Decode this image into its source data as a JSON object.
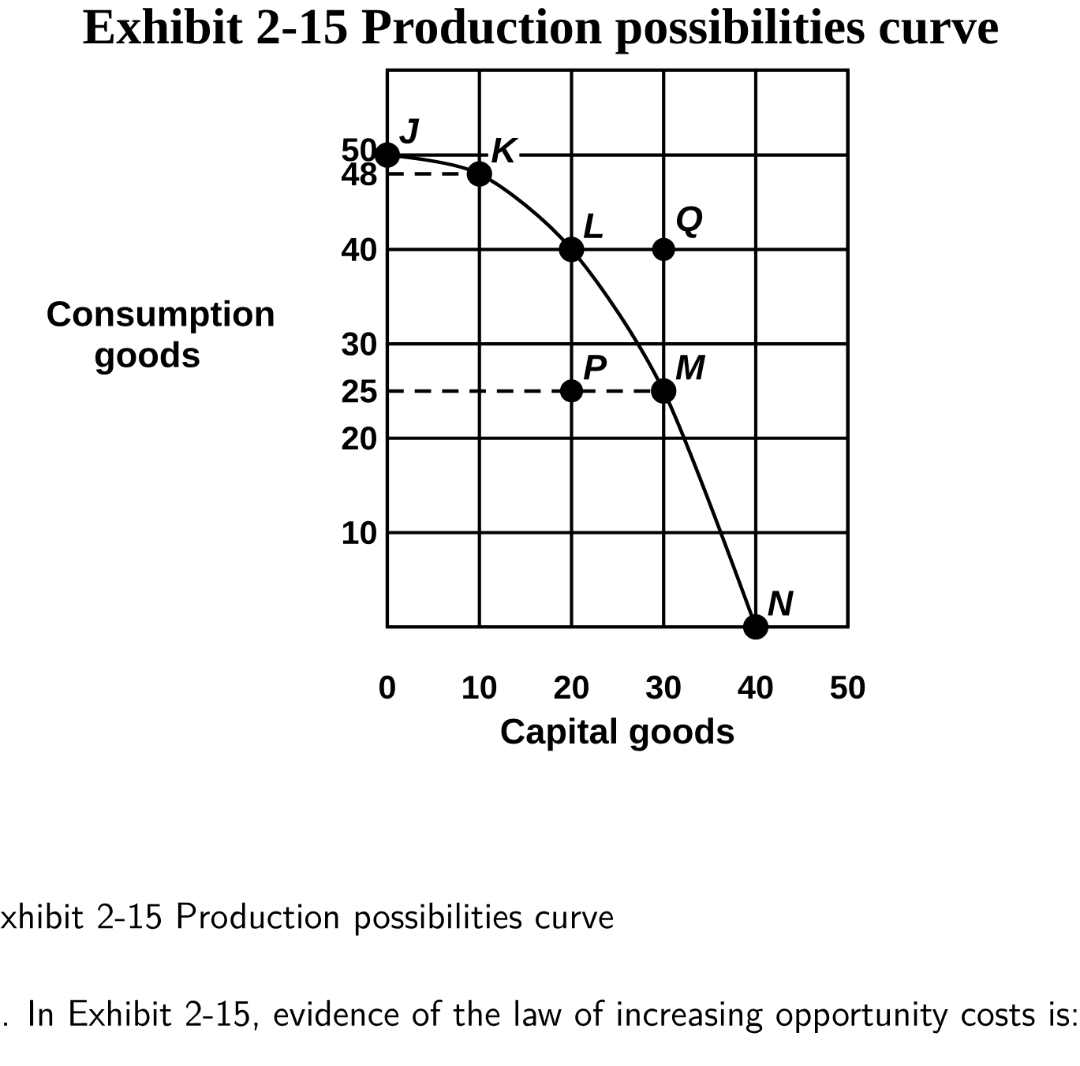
{
  "chart_data": {
    "type": "line",
    "title": "Exhibit 2-15 Production possibilities curve",
    "xlabel": "Capital goods",
    "ylabel": "Consumption goods",
    "xlim": [
      0,
      50
    ],
    "ylim": [
      0,
      59
    ],
    "xticks": [
      0,
      10,
      20,
      30,
      40,
      50
    ],
    "yticks": [
      10,
      20,
      25,
      30,
      40,
      48,
      50
    ],
    "grid": true,
    "series": [
      {
        "color": "#000000",
        "marker": "circle",
        "line_style": "solid",
        "x": [
          0,
          10,
          20,
          30,
          40
        ],
        "values": [
          50,
          48,
          40,
          25,
          0
        ]
      },
      {
        "type": "scatter",
        "color": "#000000",
        "marker": "circle",
        "x": [
          20,
          30
        ],
        "values": [
          25,
          40
        ]
      },
      {
        "color": "#000000",
        "marker": "none",
        "line_style": "dashed",
        "x": [
          0,
          10
        ],
        "values": [
          48,
          48
        ]
      },
      {
        "color": "#000000",
        "marker": "none",
        "line_style": "dashed",
        "x": [
          0,
          30
        ],
        "values": [
          25,
          25
        ]
      }
    ],
    "annotations": [
      {
        "text": "J",
        "x": 0,
        "y": 50
      },
      {
        "text": "K",
        "x": 10,
        "y": 48
      },
      {
        "text": "L",
        "x": 20,
        "y": 40
      },
      {
        "text": "Q",
        "x": 30,
        "y": 40
      },
      {
        "text": "M",
        "x": 30,
        "y": 25
      },
      {
        "text": "P",
        "x": 20,
        "y": 25
      },
      {
        "text": "N",
        "x": 40,
        "y": 0
      },
      "xhibit 2-15 Production possibilities curve",
      ". In Exhibit 2-15, evidence of the law of increasing opportunity costs is:"
    ]
  }
}
